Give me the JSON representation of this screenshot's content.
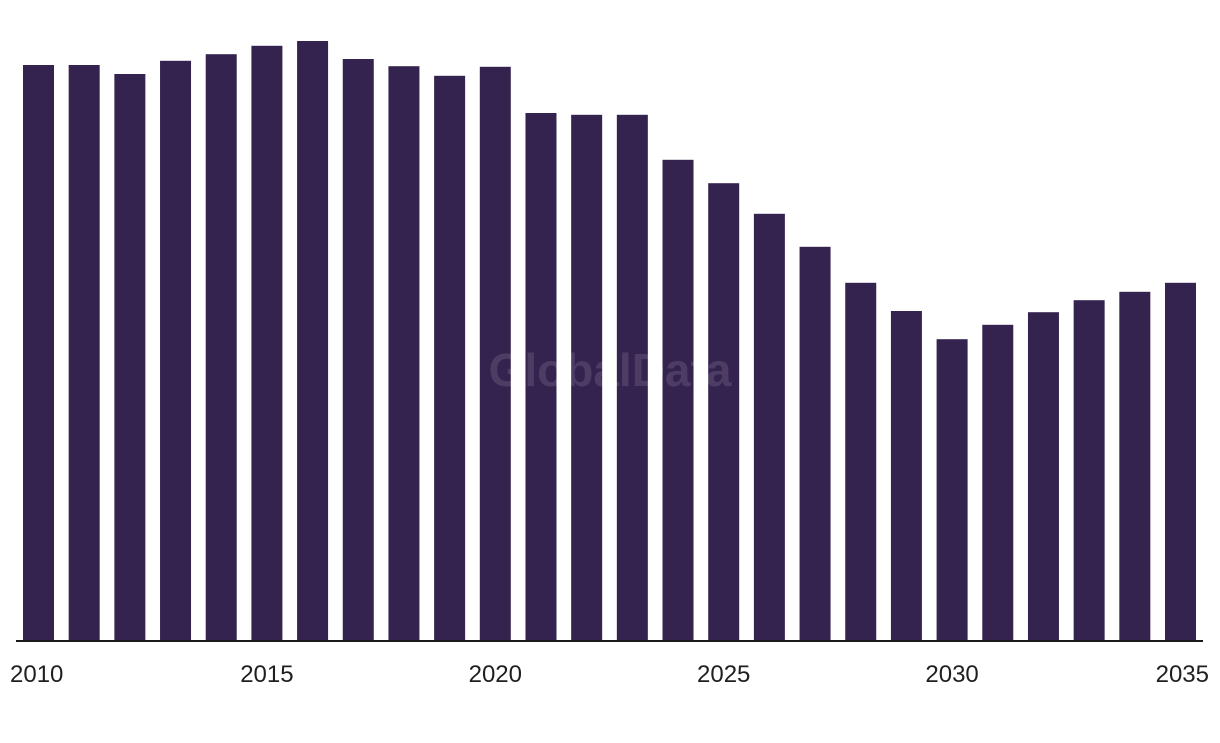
{
  "watermark": "GlobalData",
  "chart_data": {
    "type": "bar",
    "categories": [
      "2010",
      "2011",
      "2012",
      "2013",
      "2014",
      "2015",
      "2016",
      "2017",
      "2018",
      "2019",
      "2020",
      "2021",
      "2022",
      "2023",
      "2024",
      "2025",
      "2026",
      "2027",
      "2028",
      "2029",
      "2030",
      "2031",
      "2032",
      "2033",
      "2034",
      "2035"
    ],
    "values": [
      96.0,
      96.0,
      94.5,
      96.7,
      97.8,
      99.2,
      100.0,
      97.0,
      95.8,
      94.2,
      95.7,
      88.0,
      87.7,
      87.7,
      80.2,
      76.3,
      71.2,
      65.7,
      59.7,
      55.0,
      50.3,
      52.7,
      54.8,
      56.8,
      58.2,
      59.7
    ],
    "x_tick_labels": [
      "2010",
      "2015",
      "2020",
      "2025",
      "2030",
      "2035"
    ],
    "title": "",
    "xlabel": "",
    "ylabel": "",
    "ylim": [
      0,
      100
    ],
    "grid": false,
    "legend": "none",
    "bar_color": "#35234f",
    "axis_color": "#1a1a1a"
  }
}
